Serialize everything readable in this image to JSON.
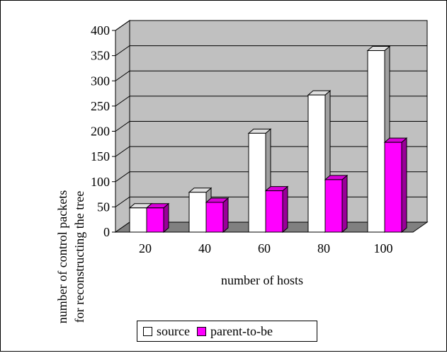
{
  "chart_data": {
    "type": "bar",
    "categories": [
      "20",
      "40",
      "60",
      "80",
      "100"
    ],
    "series": [
      {
        "name": "source",
        "values": [
          48,
          79,
          196,
          272,
          360
        ],
        "color": "#ffffff"
      },
      {
        "name": "parent-to-be",
        "values": [
          48,
          59,
          82,
          104,
          178
        ],
        "color": "#ff00ff"
      }
    ],
    "ylim": [
      0,
      400
    ],
    "yticks": [
      "0",
      "50",
      "100",
      "150",
      "200",
      "250",
      "300",
      "350",
      "400"
    ],
    "ylabel": [
      "number of control packets",
      "for reconstructing the tree"
    ],
    "xlabel": "number of hosts",
    "legend_position": "bottom",
    "grid": true,
    "style": "3d-clustered",
    "wall_color": "#c0c0c0",
    "floor_color": "#808080"
  }
}
